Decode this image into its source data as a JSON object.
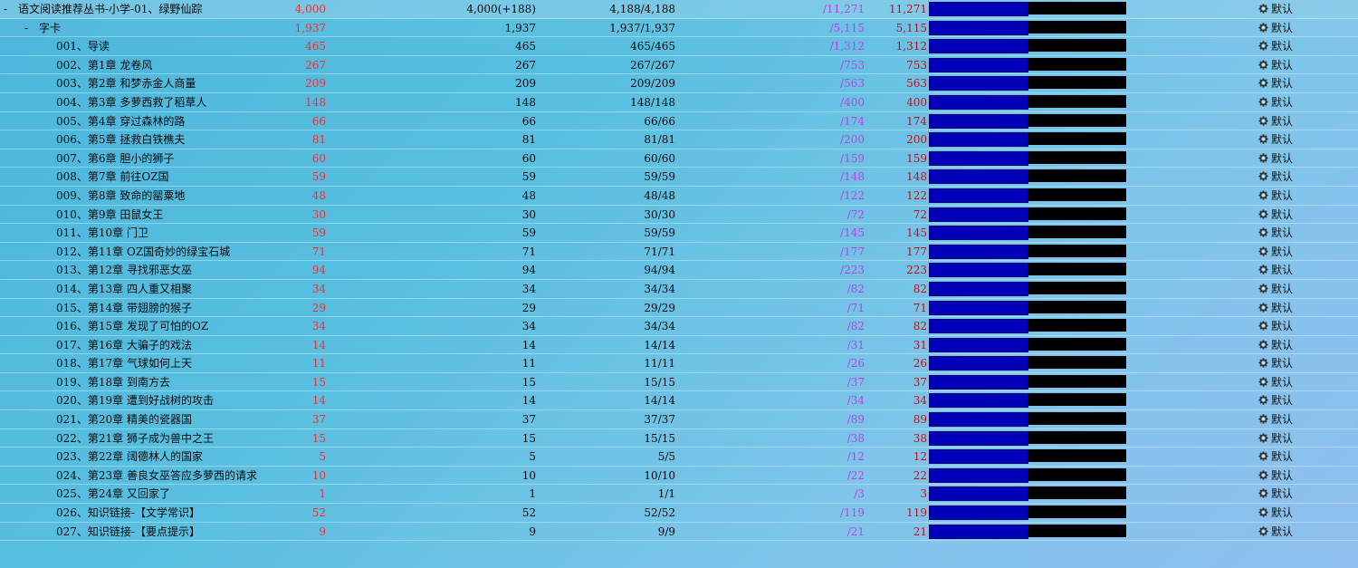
{
  "colors": {
    "count_red": "#e8323a",
    "magenta": "#c43ee8",
    "dark_red": "#b8131a",
    "bar_blue": "#0000b8",
    "bar_black": "#000000"
  },
  "icons": {
    "expand_toggle": "minus",
    "settings": "gear-icon"
  },
  "rows": [
    {
      "level": 0,
      "toggle": "-",
      "name": "语文阅读推荐丛书-小学-01、绿野仙踪",
      "red": "4,000",
      "a": "4,000(+188)",
      "b": "4,188/4,188",
      "magenta": "/11,271",
      "red2": "11,271",
      "action": "默认"
    },
    {
      "level": 1,
      "toggle": "-",
      "name": "字卡",
      "red": "1,937",
      "a": "1,937",
      "b": "1,937/1,937",
      "magenta": "/5,115",
      "red2": "5,115",
      "action": "默认"
    },
    {
      "level": 2,
      "toggle": "",
      "name": "001、导读",
      "red": "465",
      "a": "465",
      "b": "465/465",
      "magenta": "/1,312",
      "red2": "1,312",
      "action": "默认"
    },
    {
      "level": 2,
      "toggle": "",
      "name": "002、第1章 龙卷风",
      "red": "267",
      "a": "267",
      "b": "267/267",
      "magenta": "/753",
      "red2": "753",
      "action": "默认"
    },
    {
      "level": 2,
      "toggle": "",
      "name": "003、第2章 和梦赤金人商量",
      "red": "209",
      "a": "209",
      "b": "209/209",
      "magenta": "/563",
      "red2": "563",
      "action": "默认"
    },
    {
      "level": 2,
      "toggle": "",
      "name": "004、第3章 多萝西救了稻草人",
      "red": "148",
      "a": "148",
      "b": "148/148",
      "magenta": "/400",
      "red2": "400",
      "action": "默认"
    },
    {
      "level": 2,
      "toggle": "",
      "name": "005、第4章 穿过森林的路",
      "red": "66",
      "a": "66",
      "b": "66/66",
      "magenta": "/174",
      "red2": "174",
      "action": "默认"
    },
    {
      "level": 2,
      "toggle": "",
      "name": "006、第5章 拯救白铁樵夫",
      "red": "81",
      "a": "81",
      "b": "81/81",
      "magenta": "/200",
      "red2": "200",
      "action": "默认"
    },
    {
      "level": 2,
      "toggle": "",
      "name": "007、第6章 胆小的狮子",
      "red": "60",
      "a": "60",
      "b": "60/60",
      "magenta": "/159",
      "red2": "159",
      "action": "默认"
    },
    {
      "level": 2,
      "toggle": "",
      "name": "008、第7章 前往OZ国",
      "red": "59",
      "a": "59",
      "b": "59/59",
      "magenta": "/148",
      "red2": "148",
      "action": "默认"
    },
    {
      "level": 2,
      "toggle": "",
      "name": "009、第8章 致命的罂粟地",
      "red": "48",
      "a": "48",
      "b": "48/48",
      "magenta": "/122",
      "red2": "122",
      "action": "默认"
    },
    {
      "level": 2,
      "toggle": "",
      "name": "010、第9章 田鼠女王",
      "red": "30",
      "a": "30",
      "b": "30/30",
      "magenta": "/72",
      "red2": "72",
      "action": "默认"
    },
    {
      "level": 2,
      "toggle": "",
      "name": "011、第10章 门卫",
      "red": "59",
      "a": "59",
      "b": "59/59",
      "magenta": "/145",
      "red2": "145",
      "action": "默认"
    },
    {
      "level": 2,
      "toggle": "",
      "name": "012、第11章 OZ国奇妙的绿宝石城",
      "red": "71",
      "a": "71",
      "b": "71/71",
      "magenta": "/177",
      "red2": "177",
      "action": "默认"
    },
    {
      "level": 2,
      "toggle": "",
      "name": "013、第12章 寻找邪恶女巫",
      "red": "94",
      "a": "94",
      "b": "94/94",
      "magenta": "/223",
      "red2": "223",
      "action": "默认"
    },
    {
      "level": 2,
      "toggle": "",
      "name": "014、第13章 四人重又相聚",
      "red": "34",
      "a": "34",
      "b": "34/34",
      "magenta": "/82",
      "red2": "82",
      "action": "默认"
    },
    {
      "level": 2,
      "toggle": "",
      "name": "015、第14章 带翅膀的猴子",
      "red": "29",
      "a": "29",
      "b": "29/29",
      "magenta": "/71",
      "red2": "71",
      "action": "默认"
    },
    {
      "level": 2,
      "toggle": "",
      "name": "016、第15章 发现了可怕的OZ",
      "red": "34",
      "a": "34",
      "b": "34/34",
      "magenta": "/82",
      "red2": "82",
      "action": "默认"
    },
    {
      "level": 2,
      "toggle": "",
      "name": "017、第16章 大骗子的戏法",
      "red": "14",
      "a": "14",
      "b": "14/14",
      "magenta": "/31",
      "red2": "31",
      "action": "默认"
    },
    {
      "level": 2,
      "toggle": "",
      "name": "018、第17章 气球如何上天",
      "red": "11",
      "a": "11",
      "b": "11/11",
      "magenta": "/26",
      "red2": "26",
      "action": "默认"
    },
    {
      "level": 2,
      "toggle": "",
      "name": "019、第18章 到南方去",
      "red": "15",
      "a": "15",
      "b": "15/15",
      "magenta": "/37",
      "red2": "37",
      "action": "默认"
    },
    {
      "level": 2,
      "toggle": "",
      "name": "020、第19章 遭到好战树的攻击",
      "red": "14",
      "a": "14",
      "b": "14/14",
      "magenta": "/34",
      "red2": "34",
      "action": "默认"
    },
    {
      "level": 2,
      "toggle": "",
      "name": "021、第20章 精美的瓷器国",
      "red": "37",
      "a": "37",
      "b": "37/37",
      "magenta": "/89",
      "red2": "89",
      "action": "默认"
    },
    {
      "level": 2,
      "toggle": "",
      "name": "022、第21章 狮子成为兽中之王",
      "red": "15",
      "a": "15",
      "b": "15/15",
      "magenta": "/38",
      "red2": "38",
      "action": "默认"
    },
    {
      "level": 2,
      "toggle": "",
      "name": "023、第22章 阔德林人的国家",
      "red": "5",
      "a": "5",
      "b": "5/5",
      "magenta": "/12",
      "red2": "12",
      "action": "默认"
    },
    {
      "level": 2,
      "toggle": "",
      "name": "024、第23章 善良女巫答应多萝西的请求",
      "red": "10",
      "a": "10",
      "b": "10/10",
      "magenta": "/22",
      "red2": "22",
      "action": "默认"
    },
    {
      "level": 2,
      "toggle": "",
      "name": "025、第24章 又回家了",
      "red": "1",
      "a": "1",
      "b": "1/1",
      "magenta": "/3",
      "red2": "3",
      "action": "默认"
    },
    {
      "level": 2,
      "toggle": "",
      "name": "026、知识链接-【文学常识】",
      "red": "52",
      "a": "52",
      "b": "52/52",
      "magenta": "/119",
      "red2": "119",
      "action": "默认"
    },
    {
      "level": 2,
      "toggle": "",
      "name": "027、知识链接-【要点提示】",
      "red": "9",
      "a": "9",
      "b": "9/9",
      "magenta": "/21",
      "red2": "21",
      "action": "默认"
    }
  ]
}
